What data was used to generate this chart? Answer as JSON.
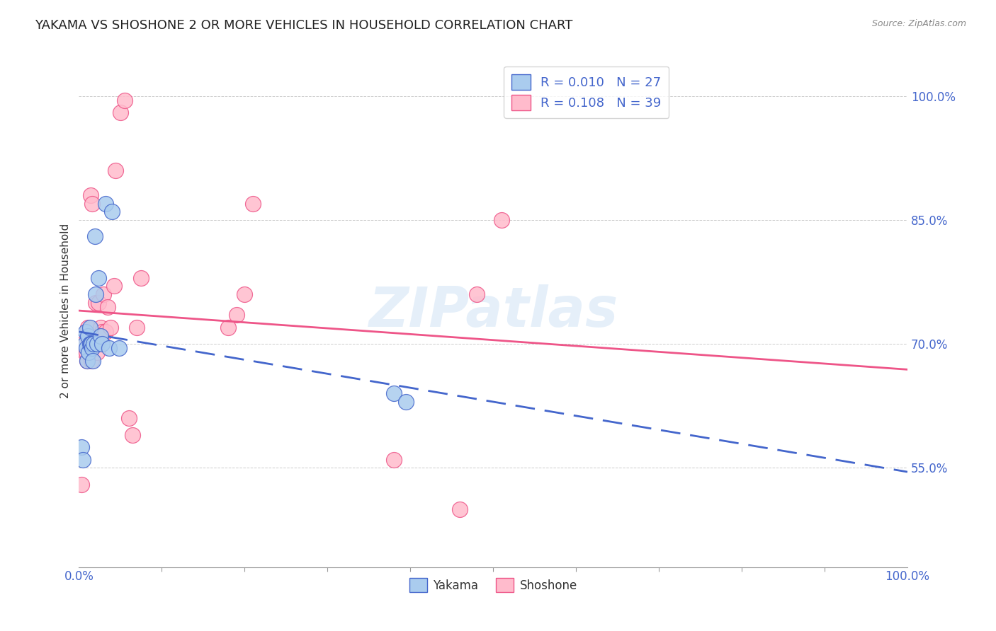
{
  "title": "YAKAMA VS SHOSHONE 2 OR MORE VEHICLES IN HOUSEHOLD CORRELATION CHART",
  "source": "Source: ZipAtlas.com",
  "ylabel": "2 or more Vehicles in Household",
  "xlim": [
    0.0,
    1.0
  ],
  "ylim": [
    0.43,
    1.05
  ],
  "yticks": [
    0.55,
    0.7,
    0.85,
    1.0
  ],
  "ytick_labels": [
    "55.0%",
    "70.0%",
    "85.0%",
    "100.0%"
  ],
  "legend_r_yakama": "R = 0.010",
  "legend_n_yakama": "N = 27",
  "legend_r_shoshone": "R = 0.108",
  "legend_n_shoshone": "N = 39",
  "yakama_x": [
    0.003,
    0.005,
    0.007,
    0.008,
    0.009,
    0.01,
    0.011,
    0.012,
    0.013,
    0.013,
    0.014,
    0.015,
    0.016,
    0.017,
    0.018,
    0.019,
    0.02,
    0.022,
    0.024,
    0.026,
    0.028,
    0.032,
    0.036,
    0.04,
    0.048,
    0.38,
    0.395
  ],
  "yakama_y": [
    0.575,
    0.56,
    0.7,
    0.715,
    0.695,
    0.68,
    0.71,
    0.69,
    0.7,
    0.72,
    0.7,
    0.7,
    0.695,
    0.68,
    0.7,
    0.83,
    0.76,
    0.7,
    0.78,
    0.71,
    0.7,
    0.87,
    0.695,
    0.86,
    0.695,
    0.64,
    0.63
  ],
  "shoshone_x": [
    0.003,
    0.005,
    0.007,
    0.009,
    0.01,
    0.011,
    0.012,
    0.013,
    0.014,
    0.015,
    0.016,
    0.017,
    0.018,
    0.02,
    0.021,
    0.022,
    0.024,
    0.026,
    0.028,
    0.03,
    0.032,
    0.035,
    0.038,
    0.042,
    0.044,
    0.05,
    0.055,
    0.06,
    0.065,
    0.07,
    0.075,
    0.18,
    0.19,
    0.2,
    0.21,
    0.38,
    0.46,
    0.48,
    0.51
  ],
  "shoshone_y": [
    0.53,
    0.7,
    0.69,
    0.69,
    0.68,
    0.72,
    0.7,
    0.71,
    0.88,
    0.68,
    0.87,
    0.7,
    0.7,
    0.75,
    0.7,
    0.69,
    0.75,
    0.72,
    0.715,
    0.76,
    0.715,
    0.745,
    0.72,
    0.77,
    0.91,
    0.98,
    0.995,
    0.61,
    0.59,
    0.72,
    0.78,
    0.72,
    0.735,
    0.76,
    0.87,
    0.56,
    0.5,
    0.76,
    0.85
  ],
  "yakama_color": "#aaccee",
  "shoshone_color": "#ffbbcc",
  "yakama_line_color": "#4466cc",
  "shoshone_line_color": "#ee5588",
  "background_color": "#ffffff",
  "watermark": "ZIPatlas",
  "title_fontsize": 13,
  "axis_label_fontsize": 11,
  "tick_fontsize": 12
}
